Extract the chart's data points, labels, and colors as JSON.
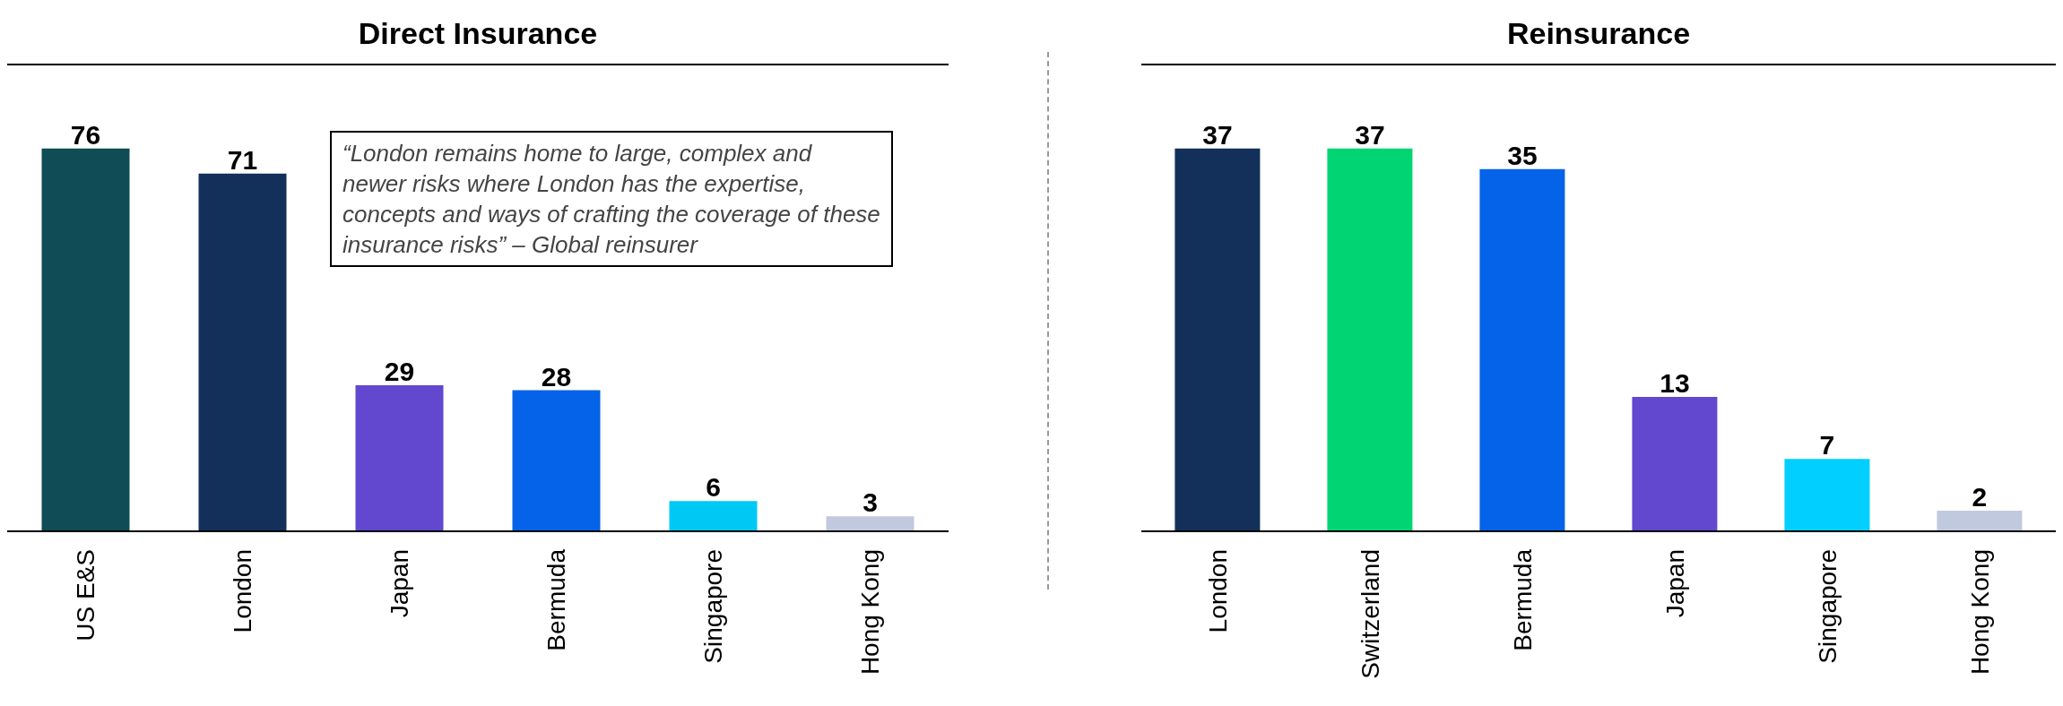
{
  "chart_data": [
    {
      "type": "bar",
      "title": "Direct Insurance",
      "categories": [
        "US E&S",
        "London",
        "Japan",
        "Bermuda",
        "Singapore",
        "Hong Kong"
      ],
      "values": [
        76,
        71,
        29,
        28,
        6,
        3
      ],
      "colors": [
        "#0f4c55",
        "#12305a",
        "#6247cf",
        "#0463e8",
        "#00c8f5",
        "#c0c9de"
      ],
      "data_labels": true,
      "annotations": [
        "“London remains home to large, complex and newer risks where London has the expertise, concepts and ways of crafting the coverage of these insurance risks” – Global reinsurer"
      ]
    },
    {
      "type": "bar",
      "title": "Reinsurance",
      "categories": [
        "London",
        "Switzerland",
        "Bermuda",
        "Japan",
        "Singapore",
        "Hong Kong"
      ],
      "values": [
        37,
        37,
        35,
        13,
        7,
        2
      ],
      "colors": [
        "#12305a",
        "#00d473",
        "#0463e8",
        "#6247cf",
        "#00cfff",
        "#c0c9de"
      ],
      "data_labels": true
    }
  ]
}
